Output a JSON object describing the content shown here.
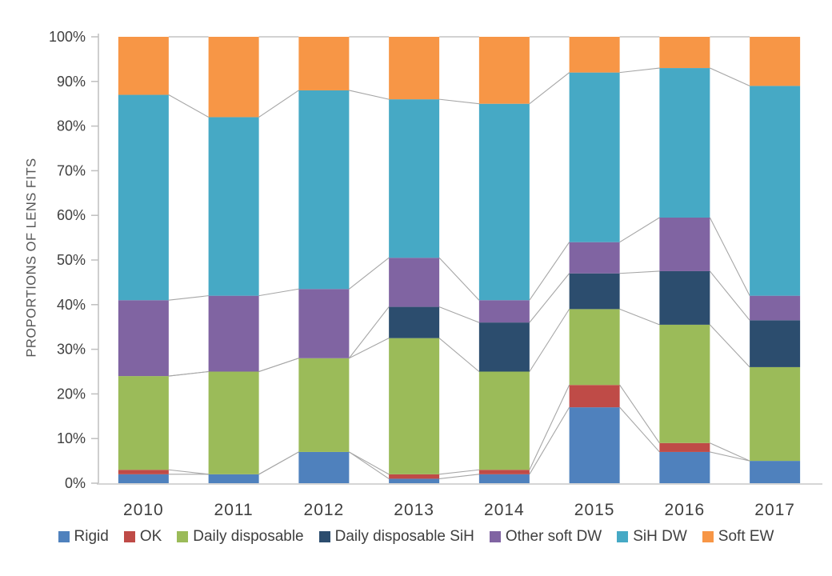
{
  "chart_data": {
    "type": "bar",
    "variant": "stacked-100",
    "ylabel": "PROPORTIONS OF LENS FITS",
    "xlabel": "",
    "ylim": [
      0,
      100
    ],
    "grid": false,
    "legend_position": "bottom",
    "connector_lines": true,
    "connector_color": "#a6a6a6",
    "axis_line_color": "#bfbfbf",
    "categories": [
      "2010",
      "2011",
      "2012",
      "2013",
      "2014",
      "2015",
      "2016",
      "2017"
    ],
    "y_ticks": [
      "0%",
      "10%",
      "20%",
      "30%",
      "40%",
      "50%",
      "60%",
      "70%",
      "80%",
      "90%",
      "100%"
    ],
    "series": [
      {
        "name": "Rigid",
        "color": "#4f81bd",
        "values": [
          2,
          2,
          7,
          1,
          2,
          17,
          7,
          5
        ]
      },
      {
        "name": "OK",
        "color": "#bf4b47",
        "values": [
          1,
          0,
          0,
          1,
          1,
          5,
          2,
          0
        ]
      },
      {
        "name": "Daily disposable",
        "color": "#9bbb59",
        "values": [
          21,
          23,
          21,
          30.5,
          22,
          17,
          26.5,
          21
        ]
      },
      {
        "name": "Daily disposable SiH",
        "color": "#2c4d6e",
        "values": [
          0,
          0,
          0,
          7,
          11,
          8,
          12,
          10.5
        ]
      },
      {
        "name": "Other soft DW",
        "color": "#8064a2",
        "values": [
          17,
          17,
          15.5,
          11,
          5,
          7,
          12,
          5.5
        ]
      },
      {
        "name": "SiH DW",
        "color": "#46a9c5",
        "values": [
          46,
          40,
          44.5,
          35.5,
          44,
          38,
          33.5,
          47
        ]
      },
      {
        "name": "Soft EW",
        "color": "#f79646",
        "values": [
          13,
          18,
          12,
          14,
          15,
          8,
          7,
          11
        ]
      }
    ]
  }
}
